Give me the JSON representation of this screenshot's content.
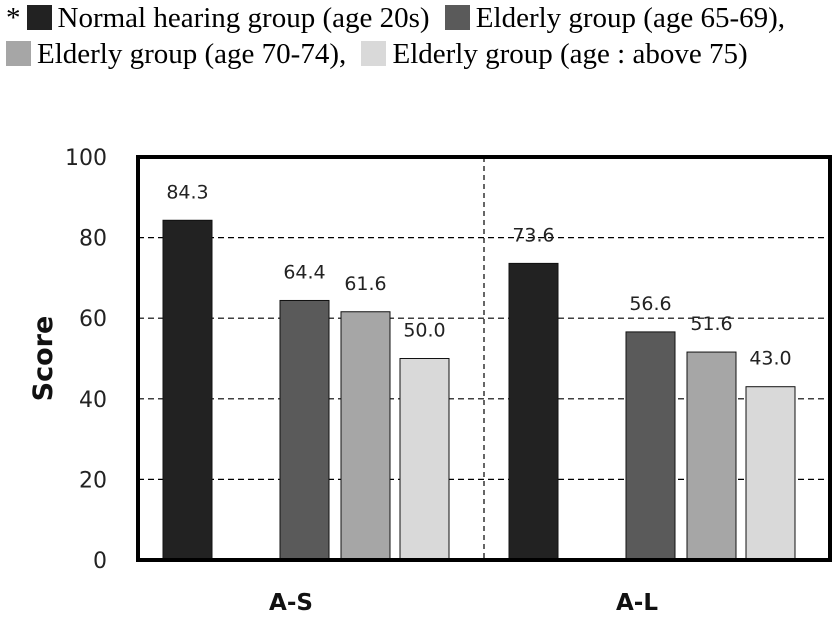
{
  "legend": {
    "prefix": "*",
    "items": [
      {
        "label": "Normal hearing group (age 20s)",
        "color": "#222222"
      },
      {
        "label": "Elderly group (age 65-69),",
        "color": "#5a5a5a"
      },
      {
        "label": "Elderly group (age 70-74),",
        "color": "#a6a6a6"
      },
      {
        "label": "Elderly group (age : above 75)",
        "color": "#d9d9d9"
      }
    ]
  },
  "chart_data": {
    "type": "bar",
    "ylabel": "Score",
    "ylim": [
      0,
      100
    ],
    "yticks": [
      0,
      20,
      40,
      60,
      80,
      100
    ],
    "grid": "dashed-horizontal",
    "categories": [
      "A-S",
      "A-L"
    ],
    "series": [
      {
        "name": "Normal hearing group (age 20s)",
        "color": "#222222",
        "values": [
          84.3,
          73.6
        ]
      },
      {
        "name": "Elderly group (age 65-69)",
        "color": "#5a5a5a",
        "values": [
          64.4,
          56.6
        ]
      },
      {
        "name": "Elderly group (age 70-74)",
        "color": "#a6a6a6",
        "values": [
          61.6,
          51.6
        ]
      },
      {
        "name": "Elderly group (age : above 75)",
        "color": "#d9d9d9",
        "values": [
          50.0,
          43.0
        ]
      }
    ],
    "data_labels": [
      [
        "84.3",
        "64.4",
        "61.6",
        "50.0"
      ],
      [
        "73.6",
        "56.6",
        "51.6",
        "43.0"
      ]
    ]
  }
}
